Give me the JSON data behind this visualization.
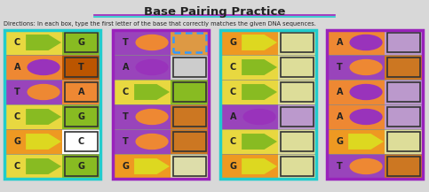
{
  "title": "Base Pairing Practice",
  "directions": "Directions: In each box, type the first letter of the base that correctly matches the given DNA sequences.",
  "bg_color": "#d8d8d8",
  "title_color": "#222222",
  "title_fontsize": 9.5,
  "dir_fontsize": 4.8,
  "columns": [
    {
      "border_color": "#22cccc",
      "border_lw": 2.5,
      "rows": [
        {
          "letter": "C",
          "left_bg": "#e8d840",
          "shape": "arrow",
          "shape_color": "#88bb22",
          "right_bg": "#88bb22",
          "right_letter": "G"
        },
        {
          "letter": "A",
          "left_bg": "#ee8833",
          "shape": "circle",
          "shape_color": "#9933bb",
          "right_bg": "#bb5500",
          "right_letter": "T"
        },
        {
          "letter": "T",
          "left_bg": "#9944bb",
          "shape": "circle",
          "shape_color": "#ee8833",
          "right_bg": "#ee8833",
          "right_letter": "A"
        },
        {
          "letter": "C",
          "left_bg": "#e8d840",
          "shape": "arrow",
          "shape_color": "#88bb22",
          "right_bg": "#88bb22",
          "right_letter": "G"
        },
        {
          "letter": "G",
          "left_bg": "#ee9922",
          "shape": "arrow",
          "shape_color": "#ddd820",
          "right_bg": "#ffffff",
          "right_letter": "C"
        },
        {
          "letter": "C",
          "left_bg": "#e8d840",
          "shape": "arrow",
          "shape_color": "#88bb22",
          "right_bg": "#88bb22",
          "right_letter": "G"
        }
      ]
    },
    {
      "border_color": "#9922bb",
      "border_lw": 2.5,
      "rows": [
        {
          "letter": "T",
          "left_bg": "#9944bb",
          "shape": "circle",
          "shape_color": "#ee8833",
          "right_bg": "#dd9944",
          "right_letter": "",
          "dotted": true
        },
        {
          "letter": "A",
          "left_bg": "#9944bb",
          "shape": "circle",
          "shape_color": "#9933bb",
          "right_bg": "#cccccc",
          "right_letter": ""
        },
        {
          "letter": "C",
          "left_bg": "#e8d840",
          "shape": "arrow",
          "shape_color": "#88bb22",
          "right_bg": "#88bb22",
          "right_letter": ""
        },
        {
          "letter": "T",
          "left_bg": "#9944bb",
          "shape": "circle",
          "shape_color": "#ee8833",
          "right_bg": "#cc7722",
          "right_letter": ""
        },
        {
          "letter": "T",
          "left_bg": "#9944bb",
          "shape": "circle",
          "shape_color": "#ee8833",
          "right_bg": "#cc7722",
          "right_letter": ""
        },
        {
          "letter": "G",
          "left_bg": "#ee9922",
          "shape": "arrow",
          "shape_color": "#ddd820",
          "right_bg": "#ddddaa",
          "right_letter": ""
        }
      ]
    },
    {
      "border_color": "#22cccc",
      "border_lw": 2.5,
      "rows": [
        {
          "letter": "G",
          "left_bg": "#ee9922",
          "shape": "arrow",
          "shape_color": "#ddd820",
          "right_bg": "#dddd99",
          "right_letter": ""
        },
        {
          "letter": "C",
          "left_bg": "#e8d840",
          "shape": "arrow",
          "shape_color": "#88bb22",
          "right_bg": "#dddd99",
          "right_letter": ""
        },
        {
          "letter": "C",
          "left_bg": "#e8d840",
          "shape": "arrow",
          "shape_color": "#88bb22",
          "right_bg": "#dddd99",
          "right_letter": ""
        },
        {
          "letter": "A",
          "left_bg": "#9944bb",
          "shape": "circle",
          "shape_color": "#9933bb",
          "right_bg": "#bb99cc",
          "right_letter": ""
        },
        {
          "letter": "C",
          "left_bg": "#e8d840",
          "shape": "arrow",
          "shape_color": "#88bb22",
          "right_bg": "#dddd99",
          "right_letter": ""
        },
        {
          "letter": "G",
          "left_bg": "#ee9922",
          "shape": "arrow",
          "shape_color": "#ddd820",
          "right_bg": "#dddd99",
          "right_letter": ""
        }
      ]
    },
    {
      "border_color": "#9922bb",
      "border_lw": 2.5,
      "rows": [
        {
          "letter": "A",
          "left_bg": "#ee8833",
          "shape": "circle",
          "shape_color": "#9933bb",
          "right_bg": "#bb99cc",
          "right_letter": ""
        },
        {
          "letter": "T",
          "left_bg": "#9944bb",
          "shape": "circle",
          "shape_color": "#ee8833",
          "right_bg": "#cc7722",
          "right_letter": ""
        },
        {
          "letter": "A",
          "left_bg": "#ee8833",
          "shape": "circle",
          "shape_color": "#9933bb",
          "right_bg": "#bb99cc",
          "right_letter": ""
        },
        {
          "letter": "A",
          "left_bg": "#ee8833",
          "shape": "circle",
          "shape_color": "#9933bb",
          "right_bg": "#bb99cc",
          "right_letter": ""
        },
        {
          "letter": "G",
          "left_bg": "#ee9922",
          "shape": "arrow",
          "shape_color": "#ddd820",
          "right_bg": "#dddd99",
          "right_letter": ""
        },
        {
          "letter": "T",
          "left_bg": "#9944bb",
          "shape": "circle",
          "shape_color": "#ee8833",
          "right_bg": "#cc7722",
          "right_letter": ""
        }
      ]
    }
  ]
}
